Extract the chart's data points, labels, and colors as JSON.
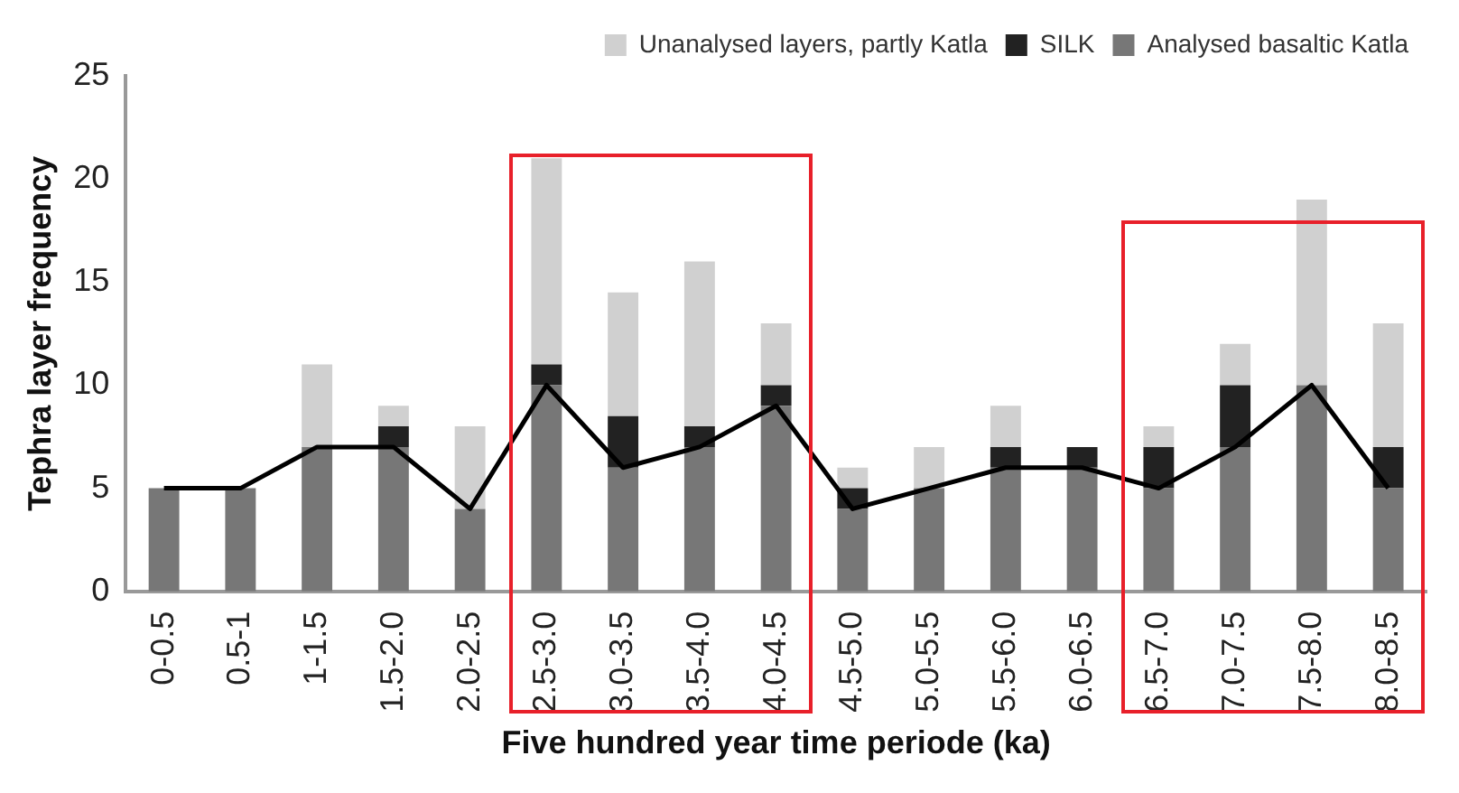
{
  "chart_data": {
    "type": "bar",
    "xlabel": "Five hundred year time periode (ka)",
    "ylabel": "Tephra layer frequency",
    "categories": [
      "0-0.5",
      "0.5-1",
      "1-1.5",
      "1.5-2.0",
      "2.0-2.5",
      "2.5-3.0",
      "3.0-3.5",
      "3.5-4.0",
      "4.0-4.5",
      "4.5-5.0",
      "5.0-5.5",
      "5.5-6.0",
      "6.0-6.5",
      "6.5-7.0",
      "7.0-7.5",
      "7.5-8.0",
      "8.0-8.5"
    ],
    "stacked": true,
    "series": [
      {
        "name": "Analysed basaltic Katla",
        "color": "#777777",
        "values": [
          5,
          5,
          7,
          7,
          4,
          10,
          6,
          7,
          9,
          4,
          5,
          6,
          6,
          5,
          7,
          10,
          5
        ]
      },
      {
        "name": "SILK",
        "color": "#222222",
        "values": [
          0,
          0,
          0,
          1,
          0,
          1,
          2.5,
          1,
          1,
          1,
          0,
          1,
          1,
          2,
          3,
          0,
          2
        ]
      },
      {
        "name": "Unanalysed layers, partly Katla",
        "color": "#d0d0d0",
        "values": [
          0,
          0,
          4,
          1,
          4,
          10,
          6,
          8,
          3,
          1,
          2,
          2,
          0,
          1,
          2,
          9,
          6
        ]
      },
      {
        "type": "line",
        "color": "#000000",
        "marker": "none",
        "values": [
          5,
          5,
          7,
          7,
          4,
          10,
          6,
          7,
          9,
          4,
          5,
          6,
          6,
          5,
          7,
          10,
          5
        ]
      }
    ],
    "ylim": [
      0,
      25
    ],
    "yticks": [
      0,
      5,
      10,
      15,
      20,
      25
    ],
    "grid": false,
    "legend": "top right"
  }
}
